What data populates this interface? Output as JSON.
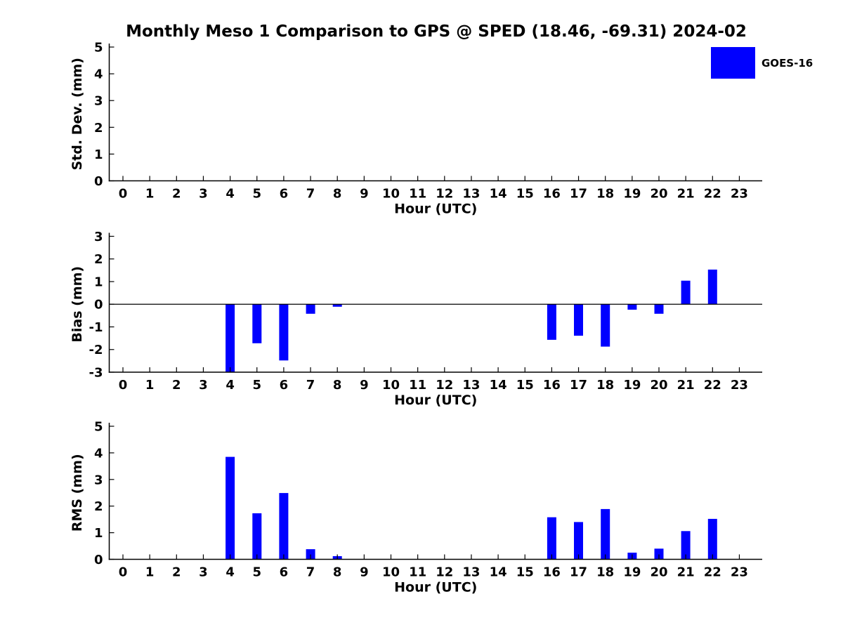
{
  "title": "Monthly Meso 1 Comparison to GPS @ SPED (18.46, -69.31) 2024-02",
  "legend": {
    "label": "GOES-16",
    "color": "#0000FF",
    "position": "upper right"
  },
  "chart_data": [
    {
      "id": "std-dev",
      "type": "bar",
      "series_name": "GOES-16",
      "categories": [
        "0",
        "1",
        "2",
        "3",
        "4",
        "5",
        "6",
        "7",
        "8",
        "9",
        "10",
        "11",
        "12",
        "13",
        "14",
        "15",
        "16",
        "17",
        "18",
        "19",
        "20",
        "21",
        "22",
        "23"
      ],
      "values": [
        0,
        0,
        0,
        0,
        0,
        0,
        0,
        0,
        0,
        0,
        0,
        0,
        0,
        0,
        0,
        0,
        0,
        0,
        0,
        0,
        0,
        0,
        0,
        0
      ],
      "xlabel": "Hour (UTC)",
      "ylabel": "Std. Dev. (mm)",
      "ylim": [
        0,
        5
      ],
      "yticks": [
        0,
        1,
        2,
        3,
        4,
        5
      ],
      "grid": false,
      "legend_position": "upper right"
    },
    {
      "id": "bias",
      "type": "bar",
      "series_name": "GOES-16",
      "categories": [
        "0",
        "1",
        "2",
        "3",
        "4",
        "5",
        "6",
        "7",
        "8",
        "9",
        "10",
        "11",
        "12",
        "13",
        "14",
        "15",
        "16",
        "17",
        "18",
        "19",
        "20",
        "21",
        "22",
        "23"
      ],
      "values": [
        0,
        0,
        0,
        0,
        -3.0,
        -1.72,
        -2.48,
        -0.42,
        -0.11,
        0,
        0,
        0,
        0,
        0,
        0,
        0,
        -1.57,
        -1.39,
        -1.87,
        -0.24,
        -0.42,
        1.04,
        1.53,
        0
      ],
      "xlabel": "Hour (UTC)",
      "ylabel": "Bias (mm)",
      "ylim": [
        -3,
        3
      ],
      "yticks": [
        -3,
        -2,
        -1,
        0,
        1,
        2,
        3
      ],
      "grid": false
    },
    {
      "id": "rms",
      "type": "bar",
      "series_name": "GOES-16",
      "categories": [
        "0",
        "1",
        "2",
        "3",
        "4",
        "5",
        "6",
        "7",
        "8",
        "9",
        "10",
        "11",
        "12",
        "13",
        "14",
        "15",
        "16",
        "17",
        "18",
        "19",
        "20",
        "21",
        "22",
        "23"
      ],
      "values": [
        0,
        0,
        0,
        0,
        3.85,
        1.73,
        2.49,
        0.38,
        0.12,
        0,
        0,
        0,
        0,
        0,
        0,
        0,
        1.58,
        1.4,
        1.89,
        0.25,
        0.4,
        1.06,
        1.52,
        0
      ],
      "xlabel": "Hour (UTC)",
      "ylabel": "RMS (mm)",
      "ylim": [
        0,
        5
      ],
      "yticks": [
        0,
        1,
        2,
        3,
        4,
        5
      ],
      "grid": false
    }
  ]
}
